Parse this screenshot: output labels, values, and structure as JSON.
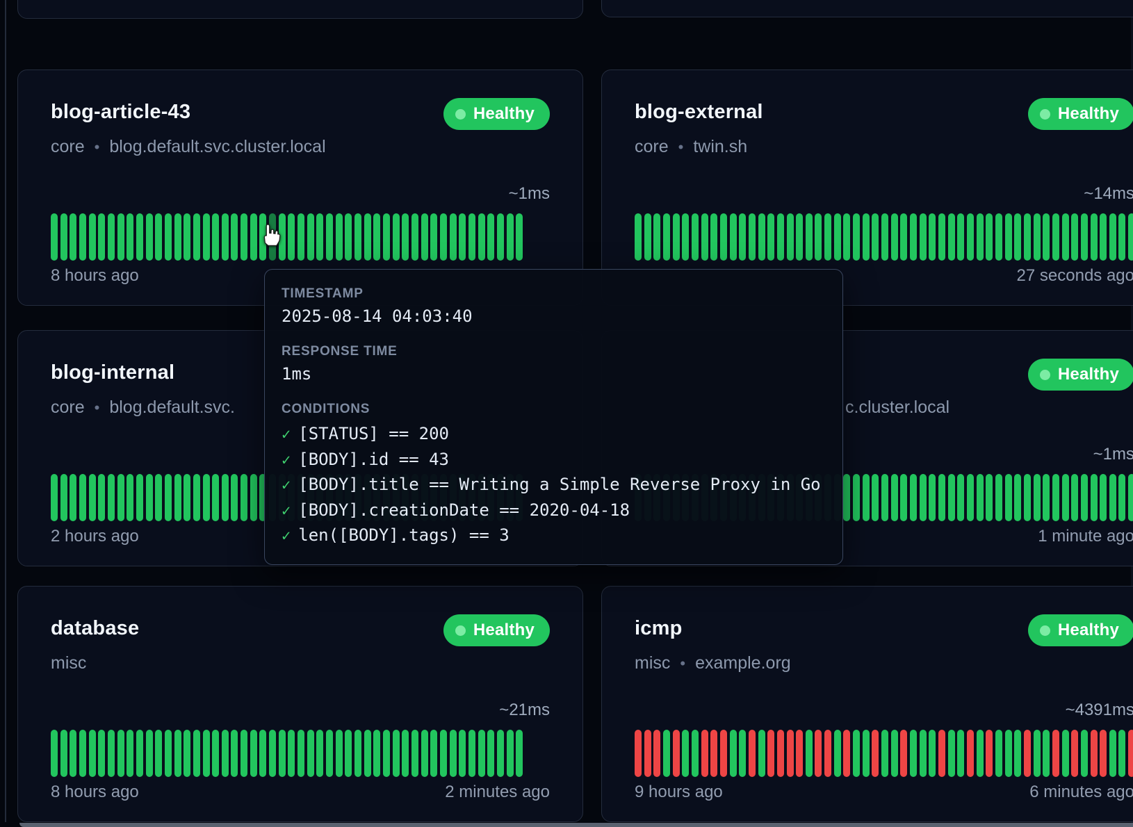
{
  "colors": {
    "healthy_green": "#22c55e",
    "failure_red": "#ee4545",
    "hovered_bar_green": "#177c41",
    "card_background": "#090e1c",
    "page_background": "#04070e"
  },
  "tooltip": {
    "timestamp_label": "TIMESTAMP",
    "timestamp_value": "2025-08-14 04:03:40",
    "response_time_label": "RESPONSE TIME",
    "response_time_value": "1ms",
    "conditions_label": "CONDITIONS",
    "check": "✓",
    "conditions": [
      "[STATUS] == 200",
      "[BODY].id == 43",
      "[BODY].title == Writing a Simple Reverse Proxy in Go",
      "[BODY].creationDate == 2020-04-18",
      "len([BODY].tags) == 3"
    ]
  },
  "cards": [
    {
      "title": "blog-article-43",
      "group": "core",
      "dot": "•",
      "url": "blog.default.svc.cluster.local",
      "status": "Healthy",
      "response_time": "~1ms",
      "left_time": "8 hours ago",
      "right_time": "",
      "bars": "GGGGGGGGGGGGGGGGGGGGGGGHGGGGGGGGGGGGGGGGGGGGGGGGGG"
    },
    {
      "title": "blog-external",
      "group": "core",
      "dot": "•",
      "url": "twin.sh",
      "status": "Healthy",
      "response_time": "~14ms",
      "left_time": "",
      "right_time": "27 seconds ago",
      "bars": "GGGGGGGGGGGGGGGGGGGGGGGGGGGGGGGGGGGGGGGGGGGGGGGGGGGGG"
    },
    {
      "title": "blog-internal",
      "group": "core",
      "dot": "•",
      "url": "blog.default.svc.",
      "status": "Healthy",
      "response_time": "",
      "left_time": "2 hours ago",
      "right_time": "",
      "bars": "GGGGGGGGGGGGGGGGGGGGGGGGGGGGGGGGGGGGGGGGGGGGGGGGGG"
    },
    {
      "title": "",
      "group": "",
      "dot": "",
      "url": "c.cluster.local",
      "status": "Healthy",
      "response_time": "~1ms",
      "left_time": "",
      "right_time": "1 minute ago",
      "bars": "GGGGGGGGGGGGGGGGGGGGGGGGGGGGGGGGGGGGGGGGGGGGGGGGGGGGG"
    },
    {
      "title": "database",
      "group": "misc",
      "dot": "",
      "url": "",
      "status": "Healthy",
      "response_time": "~21ms",
      "left_time": "8 hours ago",
      "right_time": "2 minutes ago",
      "bars": "GGGGGGGGGGGGGGGGGGGGGGGGGGGGGGGGGGGGGGGGGGGGGGGGGG"
    },
    {
      "title": "icmp",
      "group": "misc",
      "dot": "•",
      "url": "example.org",
      "status": "Healthy",
      "response_time": "~4391ms",
      "left_time": "9 hours ago",
      "right_time": "6 minutes ago",
      "bars": "RRRGRGGRRRGGRGRRRRGRRGRGGRGGRGGGRGGRGRGGGRGGRGRGRRGGR"
    }
  ]
}
